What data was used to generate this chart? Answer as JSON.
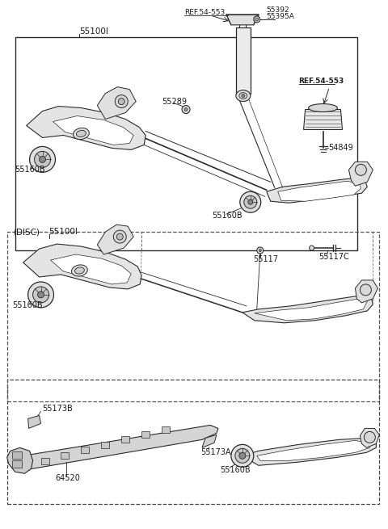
{
  "background_color": "#ffffff",
  "line_color": "#2a2a2a",
  "text_color": "#1a1a1a",
  "fig_width": 4.8,
  "fig_height": 6.55,
  "dpi": 100,
  "parts": {
    "55100I_top": "55100I",
    "55392": "55392",
    "55395A": "55395A",
    "REF_54_553_top": "REF.54-553",
    "REF_54_553_right": "REF.54-553",
    "55289": "55289",
    "54849": "54849",
    "55160B_top_left": "55160B",
    "55160B_mid": "55160B",
    "55117": "55117",
    "55117C": "55117C",
    "DISC": "(DISC)",
    "55100I_mid": "55100I",
    "55160B_disc": "55160B",
    "55173B": "55173B",
    "55173A": "55173A",
    "64520": "64520",
    "55160B_bottom": "55160B"
  }
}
